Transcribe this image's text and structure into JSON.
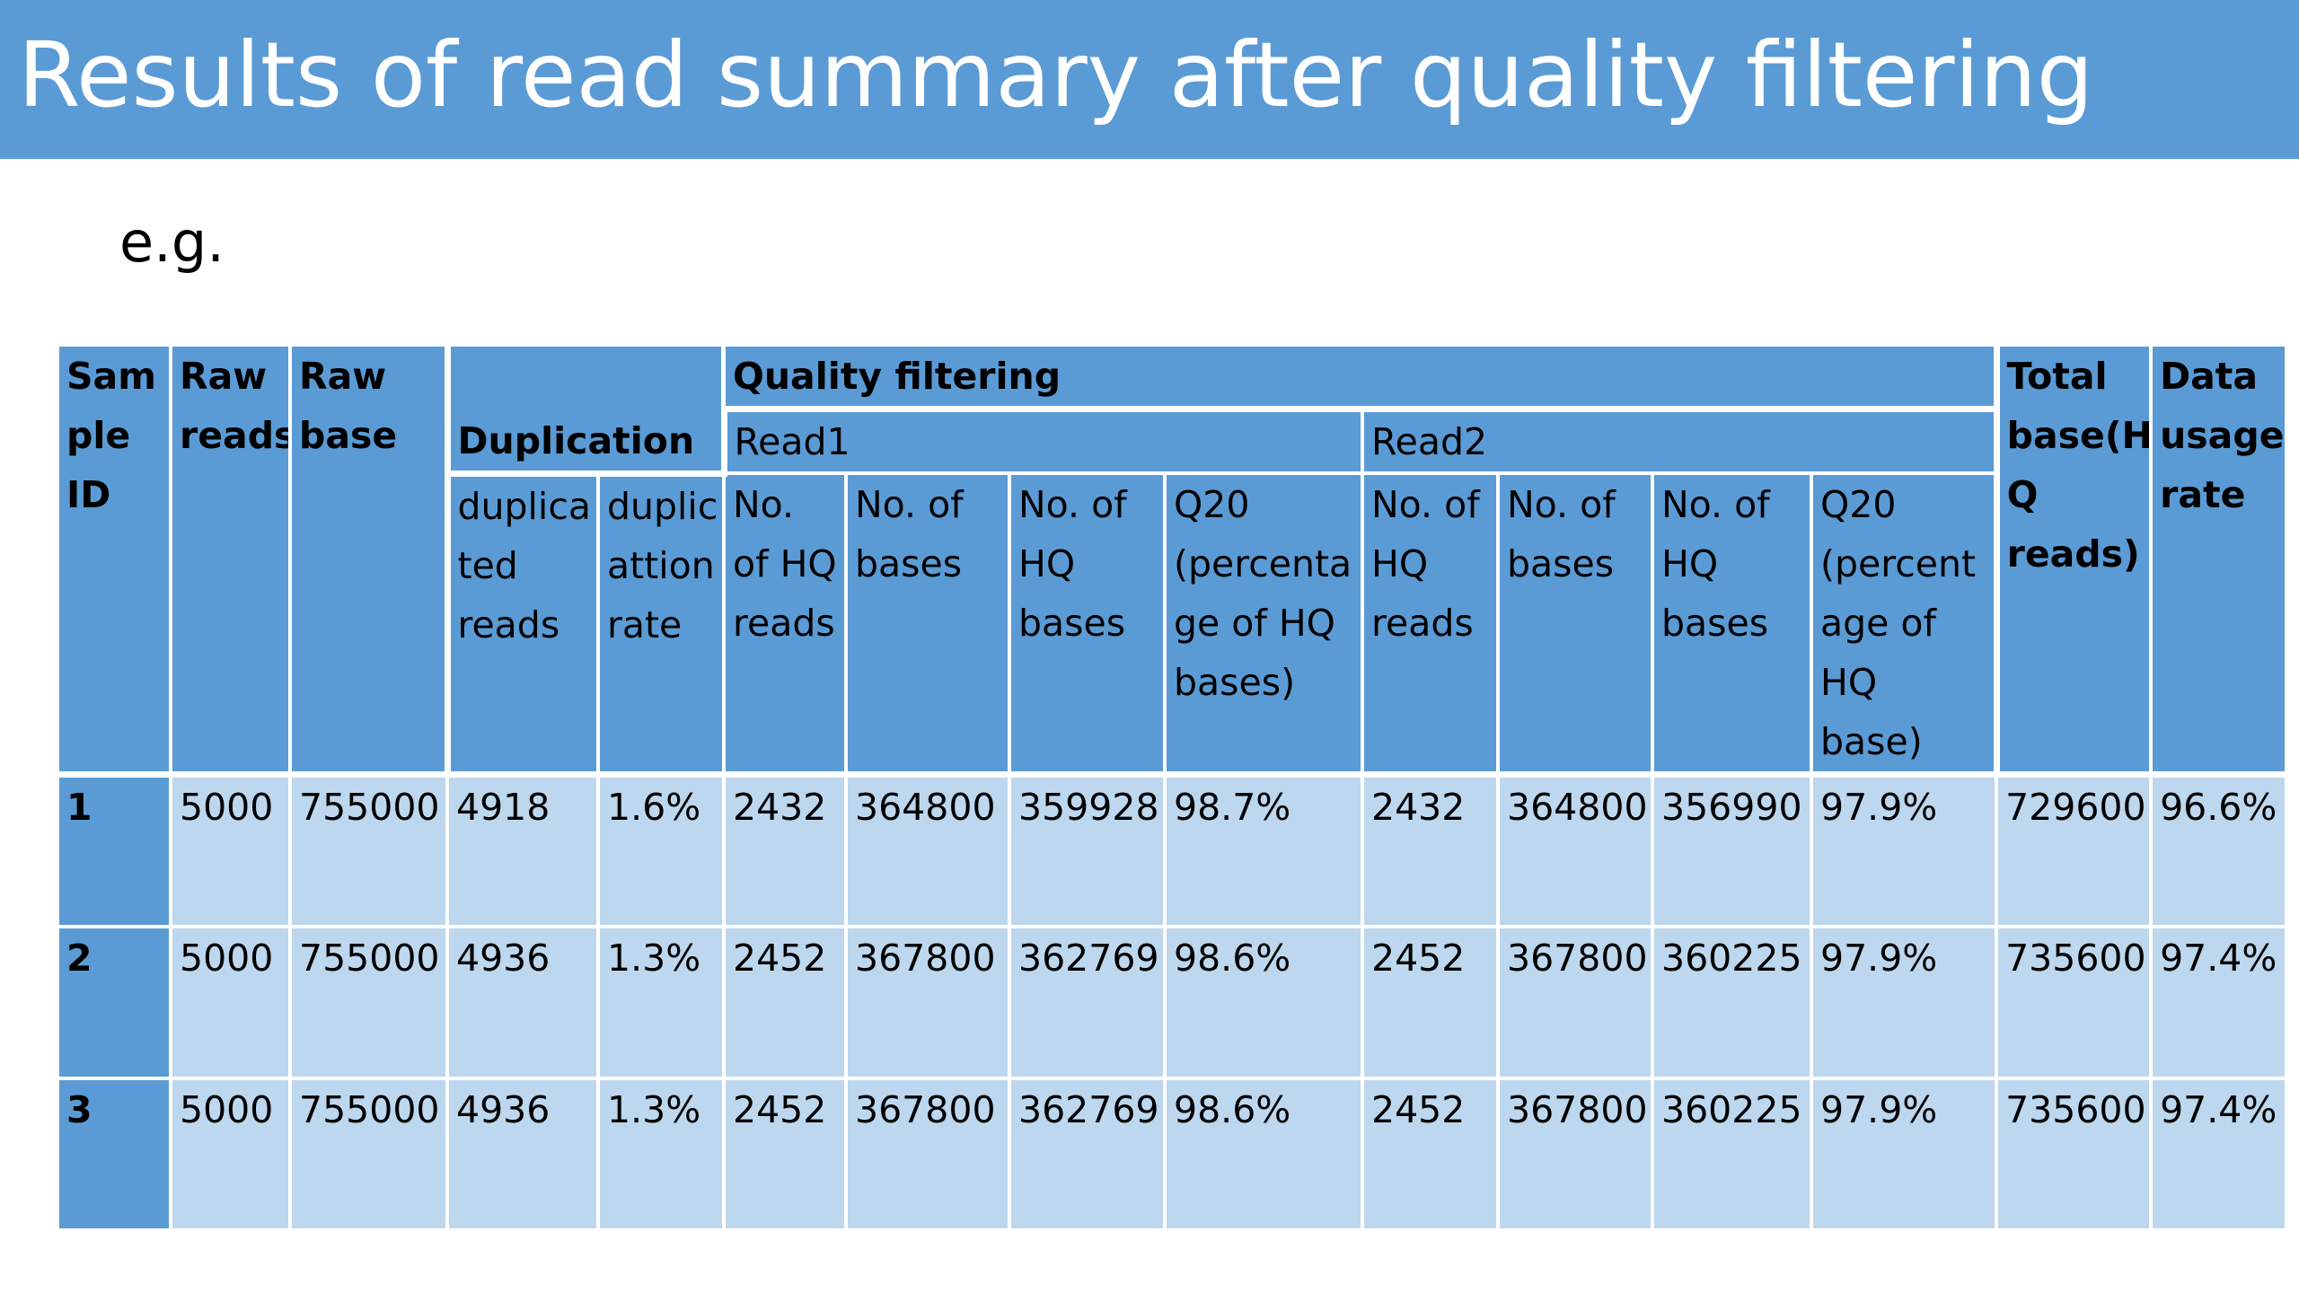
{
  "slide": {
    "title": "Results of read summary after quality filtering",
    "subtitle": "e.g."
  },
  "table": {
    "headers": {
      "sample_id": "Sam ple ID",
      "raw_reads": "Raw reads",
      "raw_base": "Raw base",
      "duplication": "Duplication",
      "quality_filtering": "Quality filtering",
      "read1": "Read1",
      "read2": "Read2",
      "total_base": "Total base(H Q reads)",
      "data_usage_rate": "Data usage rate",
      "duplicated_reads": "duplica ted reads",
      "duplication_rate": "duplic attion rate",
      "r1_hq_reads": "No. of HQ reads",
      "r1_bases": "No. of bases",
      "r1_hq_bases": "No. of HQ bases",
      "r1_q20": "Q20 (percenta ge of HQ bases)",
      "r2_hq_reads": "No. of HQ reads",
      "r2_bases": "No. of bases",
      "r2_hq_bases": "No. of HQ bases",
      "r2_q20": "Q20 (percent age of HQ base)"
    },
    "rows": [
      [
        "1",
        "5000",
        "755000",
        "4918",
        "1.6%",
        "2432",
        "364800",
        "359928",
        "98.7%",
        "2432",
        "364800",
        "356990",
        "97.9%",
        "729600",
        "96.6%"
      ],
      [
        "2",
        "5000",
        "755000",
        "4936",
        "1.3%",
        "2452",
        "367800",
        "362769",
        "98.6%",
        "2452",
        "367800",
        "360225",
        "97.9%",
        "735600",
        "97.4%"
      ],
      [
        "3",
        "5000",
        "755000",
        "4936",
        "1.3%",
        "2452",
        "367800",
        "362769",
        "98.6%",
        "2452",
        "367800",
        "360225",
        "97.9%",
        "735600",
        "97.4%"
      ]
    ]
  },
  "colors": {
    "header_blue": "#5b9bd5",
    "cell_light_blue": "#bdd7ee",
    "border_white": "#ffffff"
  }
}
